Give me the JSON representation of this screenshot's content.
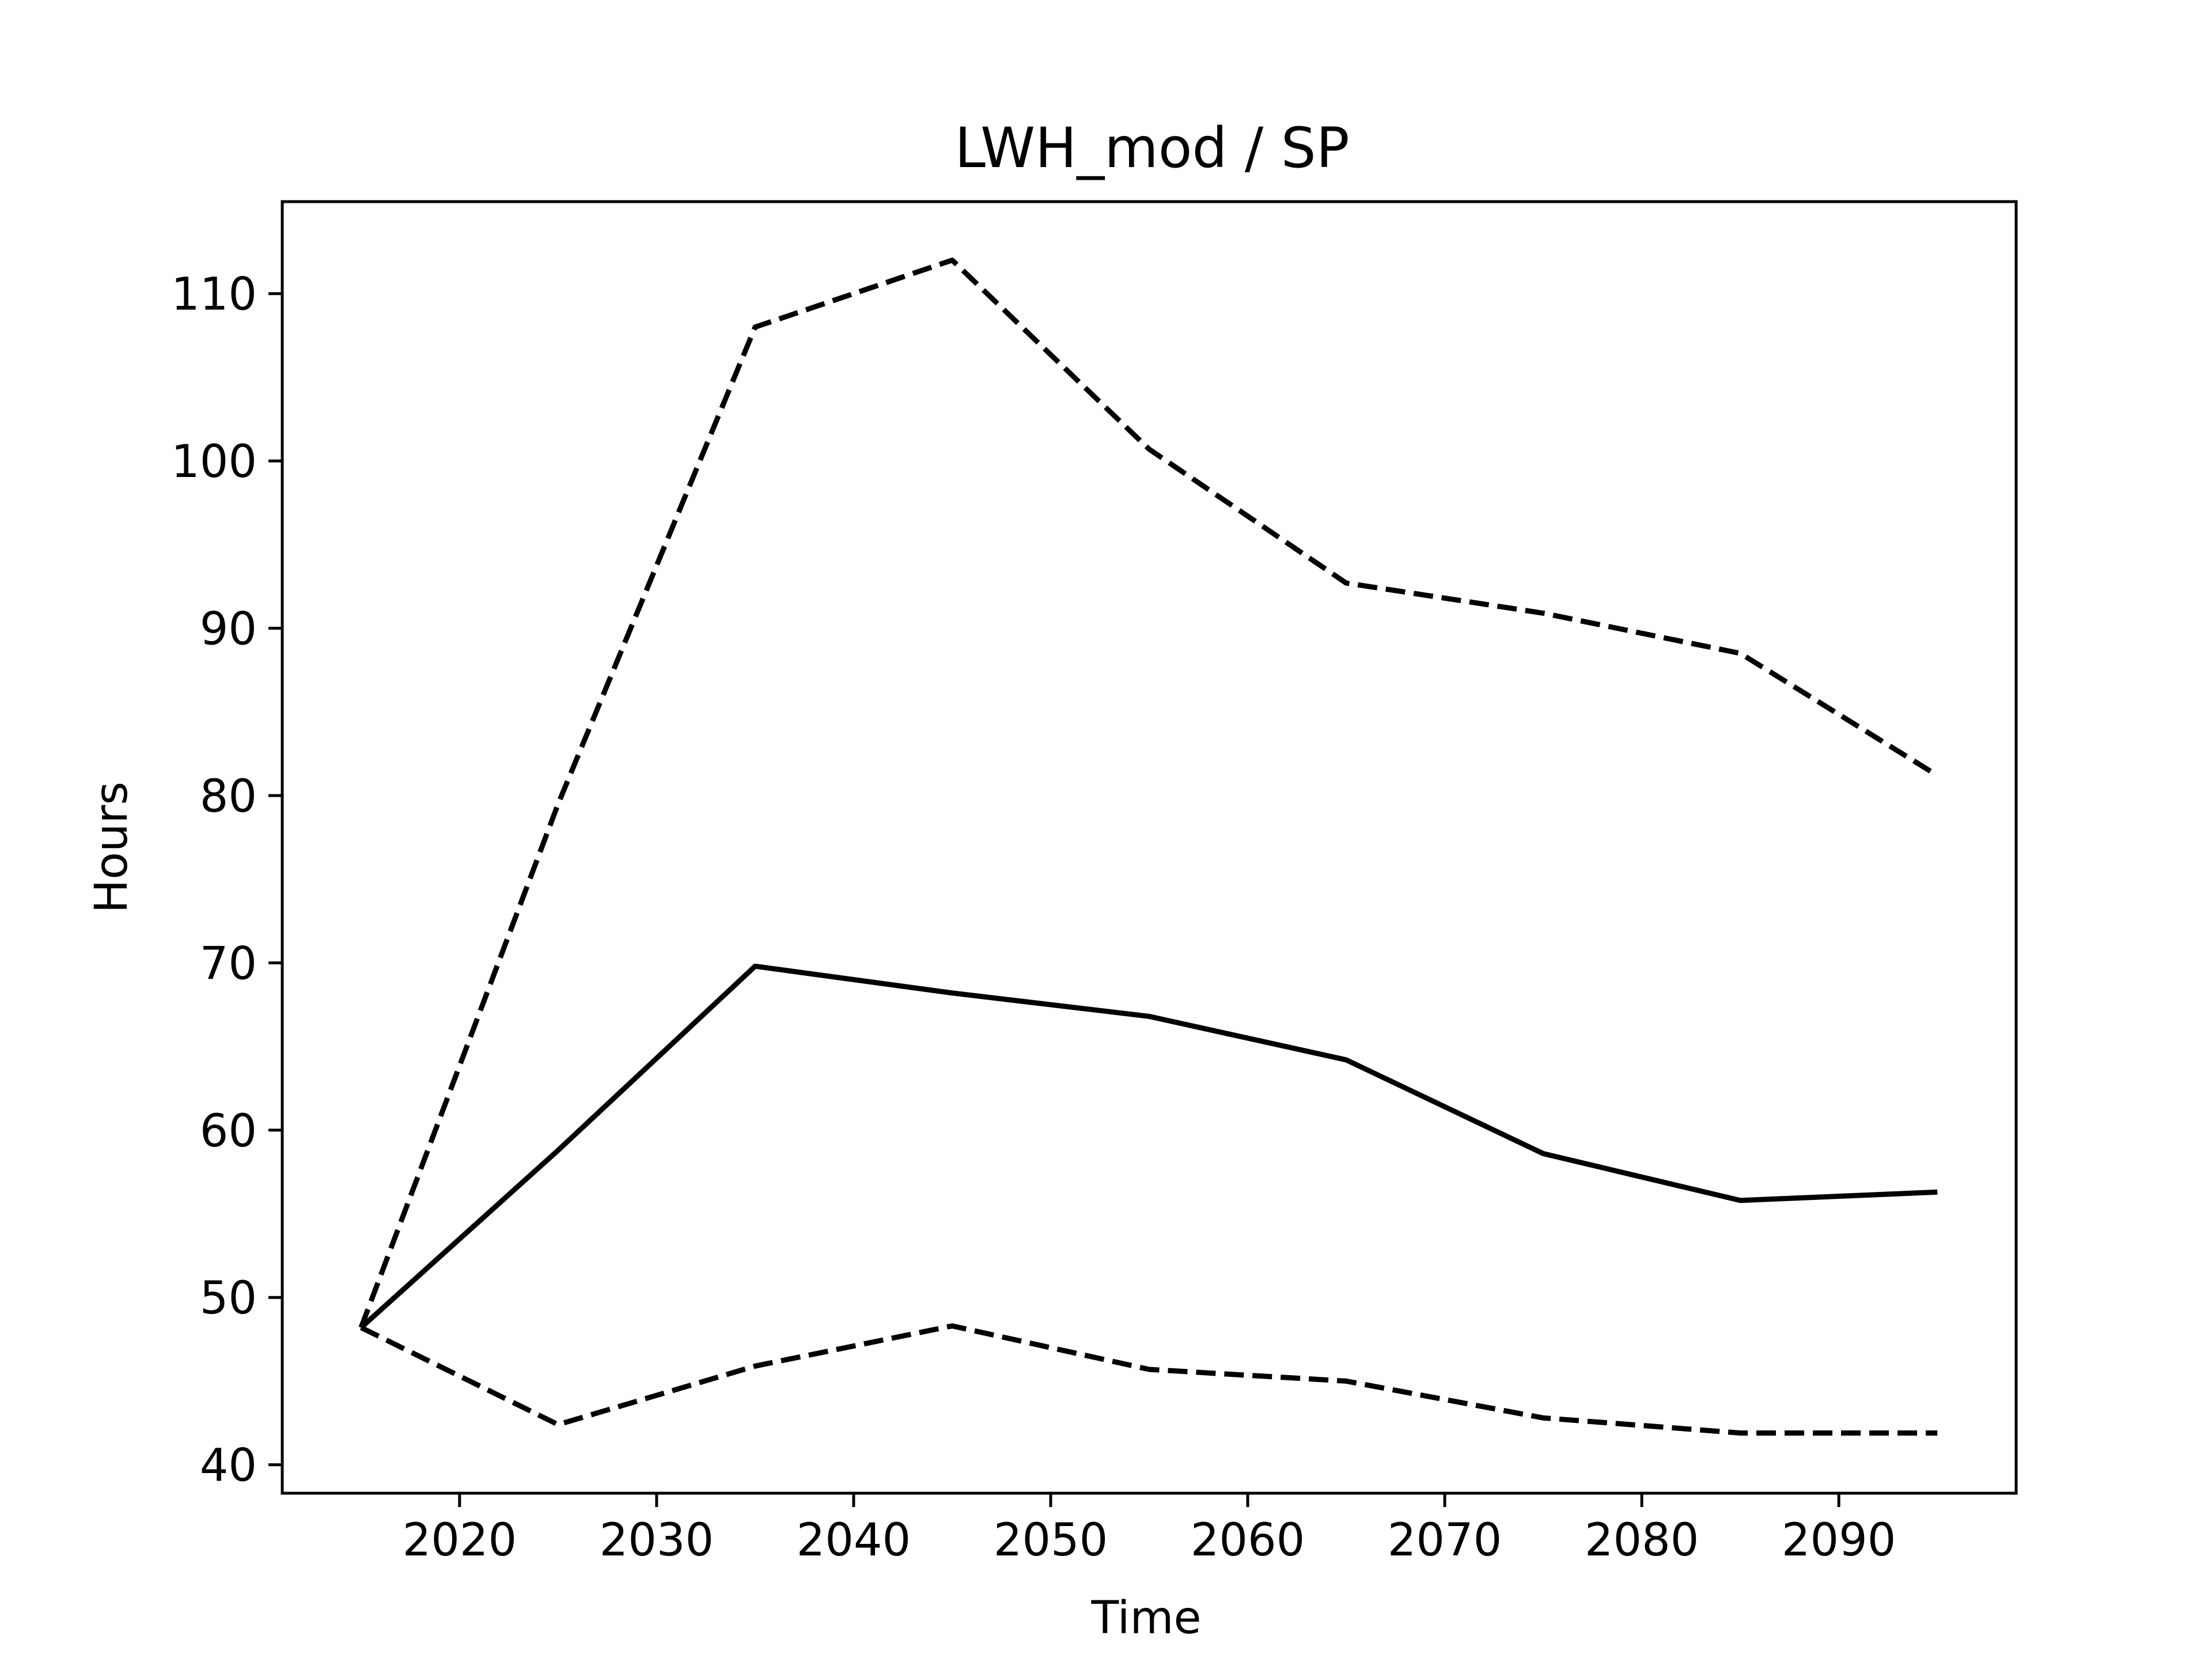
{
  "chart_data": {
    "type": "line",
    "title": "LWH_mod / SP",
    "xlabel": "Time",
    "ylabel": "Hours",
    "xlim": [
      2011,
      2099
    ],
    "ylim": [
      38.3,
      115.5
    ],
    "xticks": [
      2020,
      2030,
      2040,
      2050,
      2060,
      2070,
      2080,
      2090
    ],
    "yticks": [
      40,
      50,
      60,
      70,
      80,
      90,
      100,
      110
    ],
    "grid": false,
    "legend": "none",
    "x": [
      2015,
      2025,
      2035,
      2045,
      2055,
      2065,
      2075,
      2085,
      2095
    ],
    "series": [
      {
        "style": "dashed",
        "color": "#000000",
        "values": [
          48.2,
          79.5,
          108.0,
          112.0,
          100.7,
          92.7,
          90.9,
          88.5,
          81.2
        ]
      },
      {
        "style": "solid",
        "color": "#000000",
        "values": [
          48.2,
          58.8,
          69.8,
          68.2,
          66.8,
          64.2,
          58.6,
          55.8,
          56.3
        ]
      },
      {
        "style": "dashed",
        "color": "#000000",
        "values": [
          48.2,
          42.4,
          45.9,
          48.3,
          45.7,
          45.0,
          42.8,
          41.9,
          41.9
        ]
      }
    ]
  }
}
